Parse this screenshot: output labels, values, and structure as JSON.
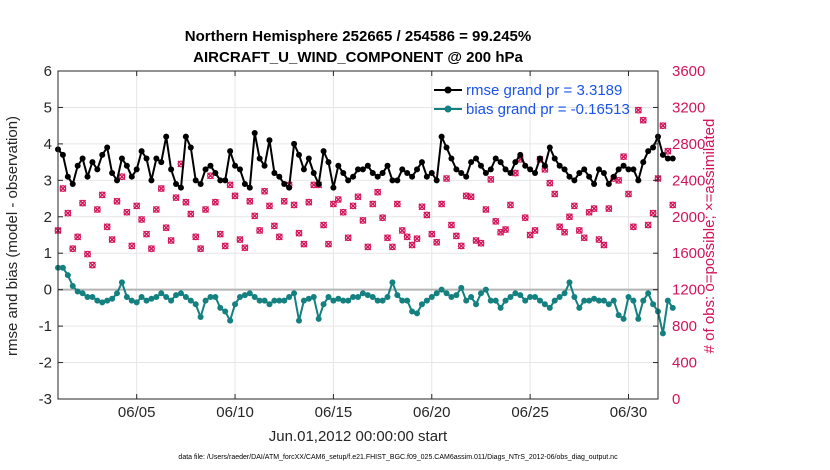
{
  "chart_data": {
    "type": "line",
    "title": "Northern Hemisphere 252665 / 254586 = 99.245%",
    "subtitle": "AIRCRAFT_U_WIND_COMPONENT @ 200 hPa",
    "xlabel": "Jun.01,2012 00:00:00 start",
    "ylabel": "rmse and bias (model - observation)",
    "y2label": "# of obs: o=possible; ×=assimilated",
    "footnote": "data file: /Users/raeder/DAI/ATM_forcXX/CAM6_setup/f.e21.FHIST_BGC.f09_025.CAM6assim.011/Diags_NTrS_2012-06/obs_diag_output.nc",
    "x_range": [
      1,
      31.5
    ],
    "ylim": [
      -3,
      6
    ],
    "y2lim": [
      0,
      3600
    ],
    "x_ticks": [
      {
        "day": 5,
        "label": "06/05"
      },
      {
        "day": 10,
        "label": "06/10"
      },
      {
        "day": 15,
        "label": "06/15"
      },
      {
        "day": 20,
        "label": "06/20"
      },
      {
        "day": 25,
        "label": "06/25"
      },
      {
        "day": 30,
        "label": "06/30"
      }
    ],
    "y_ticks": [
      "-3",
      "-2",
      "-1",
      "0",
      "1",
      "2",
      "3",
      "4",
      "5",
      "6"
    ],
    "y2_ticks": [
      "0",
      "400",
      "800",
      "1200",
      "1600",
      "2000",
      "2400",
      "2800",
      "3200",
      "3600"
    ],
    "grid": true,
    "colors": {
      "rmse": "#000000",
      "bias": "#148080",
      "obs": "#d2145a",
      "legend_text": "#1a54e8",
      "zero_line": "#b4b4b4"
    },
    "x_start": 1.0,
    "x_step": 0.25,
    "series": [
      {
        "name": "rmse grand pr = 3.3189",
        "axis": "left",
        "values": [
          3.85,
          3.7,
          3.1,
          2.9,
          3.4,
          3.6,
          3.1,
          3.5,
          3.3,
          3.7,
          3.9,
          3.2,
          3.0,
          3.6,
          3.4,
          3.1,
          3.3,
          3.8,
          3.6,
          3.0,
          3.6,
          3.5,
          4.2,
          3.3,
          2.9,
          2.8,
          4.2,
          3.9,
          3.0,
          2.9,
          3.3,
          3.4,
          3.2,
          3.0,
          3.0,
          3.8,
          3.4,
          3.3,
          2.9,
          2.8,
          4.3,
          3.6,
          3.4,
          4.1,
          3.2,
          3.1,
          2.9,
          2.8,
          4.0,
          3.7,
          3.3,
          3.6,
          3.2,
          2.9,
          3.8,
          3.5,
          2.8,
          3.4,
          3.2,
          3.0,
          3.1,
          3.3,
          3.3,
          3.4,
          3.2,
          3.1,
          3.2,
          3.4,
          3.0,
          3.0,
          3.3,
          3.2,
          3.1,
          3.3,
          3.5,
          3.1,
          3.2,
          3.0,
          4.2,
          3.9,
          3.6,
          3.3,
          3.2,
          3.1,
          3.5,
          3.6,
          3.4,
          3.2,
          3.3,
          3.6,
          3.5,
          3.3,
          3.2,
          3.5,
          3.7,
          3.4,
          3.3,
          3.2,
          3.6,
          3.4,
          3.9,
          3.6,
          3.4,
          3.3,
          3.1,
          3.0,
          3.2,
          3.3,
          3.1,
          2.9,
          3.3,
          3.2,
          2.9,
          3.1,
          3.3,
          3.4,
          3.3,
          3.3,
          3.0,
          3.5,
          3.8,
          3.9,
          4.2,
          3.7,
          3.6,
          3.6
        ]
      },
      {
        "name": "bias grand pr = -0.16513",
        "axis": "left",
        "values": [
          0.6,
          0.6,
          0.4,
          0.1,
          -0.05,
          -0.1,
          -0.2,
          -0.2,
          -0.3,
          -0.35,
          -0.3,
          -0.25,
          -0.1,
          0.2,
          -0.2,
          -0.3,
          -0.35,
          -0.2,
          -0.3,
          -0.25,
          -0.2,
          -0.1,
          -0.2,
          -0.3,
          -0.15,
          -0.1,
          -0.2,
          -0.3,
          -0.4,
          -0.75,
          -0.3,
          -0.2,
          -0.2,
          -0.5,
          -0.6,
          -0.85,
          -0.4,
          -0.2,
          -0.15,
          -0.1,
          -0.2,
          -0.3,
          -0.3,
          -0.4,
          -0.3,
          -0.3,
          -0.3,
          -0.2,
          -0.1,
          -0.85,
          -0.3,
          -0.25,
          -0.2,
          -0.8,
          -0.4,
          -0.2,
          -0.3,
          -0.25,
          -0.3,
          -0.3,
          -0.2,
          -0.2,
          -0.1,
          -0.15,
          -0.2,
          -0.3,
          -0.3,
          -0.2,
          0.2,
          -0.15,
          -0.3,
          -0.3,
          -0.6,
          -0.65,
          -0.4,
          -0.3,
          -0.2,
          -0.1,
          0.0,
          -0.1,
          -0.2,
          -0.15,
          0.05,
          -0.3,
          -0.2,
          -0.4,
          -0.1,
          0.0,
          -0.3,
          -0.3,
          -0.5,
          -0.3,
          -0.2,
          -0.1,
          -0.15,
          -0.3,
          -0.2,
          -0.2,
          -0.3,
          -0.4,
          -0.5,
          -0.3,
          -0.2,
          -0.1,
          0.2,
          -0.2,
          -0.5,
          -0.3,
          -0.3,
          -0.25,
          -0.3,
          -0.3,
          -0.4,
          -0.3,
          -0.7,
          -0.8,
          -0.2,
          -0.3,
          -0.8,
          -0.3,
          -0.1,
          -0.4,
          -0.6,
          -1.2,
          -0.3,
          -0.5
        ]
      },
      {
        "name": "# of obs",
        "axis": "right",
        "values": [
          1850,
          2310,
          2040,
          1650,
          1780,
          2150,
          1590,
          1470,
          2080,
          2240,
          1890,
          1750,
          2170,
          2440,
          2050,
          1680,
          2120,
          1970,
          1810,
          1650,
          2080,
          2310,
          1880,
          1740,
          2210,
          2580,
          2160,
          2030,
          1780,
          1650,
          2080,
          2450,
          2160,
          1810,
          1680,
          2350,
          2230,
          1750,
          1660,
          2170,
          2010,
          1850,
          2280,
          2120,
          1900,
          1780,
          2170,
          2350,
          2130,
          1820,
          1700,
          2160,
          2350,
          2350,
          1910,
          1700,
          2140,
          2190,
          2050,
          1770,
          2120,
          2220,
          1960,
          1670,
          2140,
          2270,
          1990,
          1770,
          1670,
          2140,
          1850,
          1780,
          1690,
          1760,
          2110,
          2020,
          1810,
          1720,
          2140,
          2420,
          1910,
          1790,
          1680,
          2230,
          2220,
          1740,
          1710,
          2080,
          2410,
          1950,
          1830,
          1860,
          2130,
          2480,
          2630,
          1990,
          1800,
          1850,
          2630,
          2520,
          2370,
          2250,
          1890,
          1830,
          2000,
          2120,
          1850,
          1770,
          2050,
          2090,
          1750,
          1690,
          2090,
          2420,
          2400,
          2660,
          2250,
          1890,
          3170,
          3060,
          1910,
          2040,
          2420,
          3000,
          2720,
          2130
        ]
      }
    ],
    "legend": [
      {
        "label": "rmse grand pr = 3.3189"
      },
      {
        "label": "bias grand pr = -0.16513"
      }
    ]
  }
}
